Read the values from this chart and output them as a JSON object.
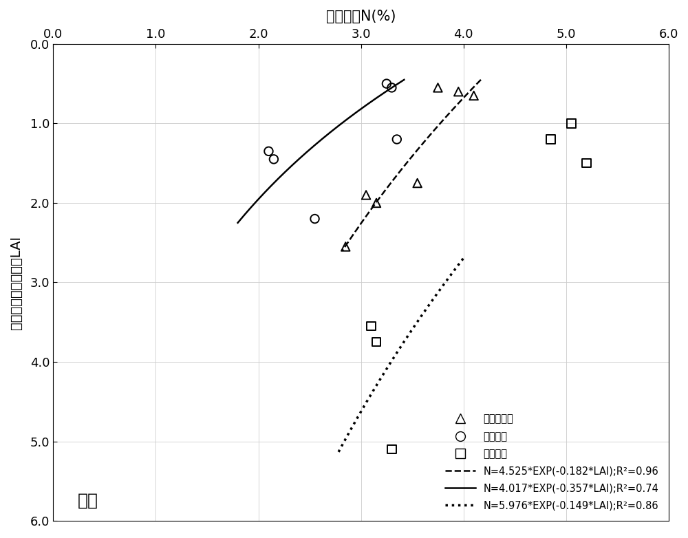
{
  "xlabel_top": "叶氮浓度N(%)",
  "ylabel": "自冠层顶部向下累积LAI",
  "annotation": "拔节",
  "xmin": 0.0,
  "xmax": 6.0,
  "ymin": 0.0,
  "ymax": 6.0,
  "xticks": [
    0.0,
    1.0,
    2.0,
    3.0,
    4.0,
    5.0,
    6.0
  ],
  "yticks": [
    0.0,
    1.0,
    2.0,
    3.0,
    4.0,
    5.0,
    6.0
  ],
  "triangle_data": {
    "N": [
      2.85,
      3.05,
      3.15,
      3.55,
      3.75,
      3.95,
      4.1
    ],
    "LAI": [
      2.55,
      1.9,
      2.0,
      1.75,
      0.55,
      0.6,
      0.65
    ]
  },
  "circle_data": {
    "N": [
      2.1,
      2.15,
      2.55,
      3.25,
      3.3,
      3.35
    ],
    "LAI": [
      1.35,
      1.45,
      2.2,
      0.5,
      0.55,
      1.2
    ]
  },
  "square_data": {
    "N": [
      3.1,
      3.15,
      3.3,
      4.85,
      5.05,
      5.2
    ],
    "LAI": [
      3.55,
      3.75,
      5.1,
      1.2,
      1.0,
      1.5
    ]
  },
  "curve_dashed": {
    "a": 4.525,
    "b": -0.182,
    "lai_start": 0.45,
    "lai_end": 2.6,
    "label": "N=4.525*EXP(-0.182*LAI);R²=0.96"
  },
  "curve_solid": {
    "a": 4.017,
    "b": -0.357,
    "lai_start": 0.45,
    "lai_end": 2.25,
    "label": "N=4.017*EXP(-0.357*LAI);R²=0.74"
  },
  "curve_dotted": {
    "a": 5.976,
    "b": -0.149,
    "lai_start": 2.7,
    "lai_end": 5.15,
    "label": "N=5.976*EXP(-0.149*LAI);R²=0.86"
  },
  "legend_triangle": "雨养无灌溉",
  "legend_circle": "氮肥亏缺",
  "legend_square": "水氮充分",
  "marker_size": 9,
  "background_color": "#ffffff"
}
